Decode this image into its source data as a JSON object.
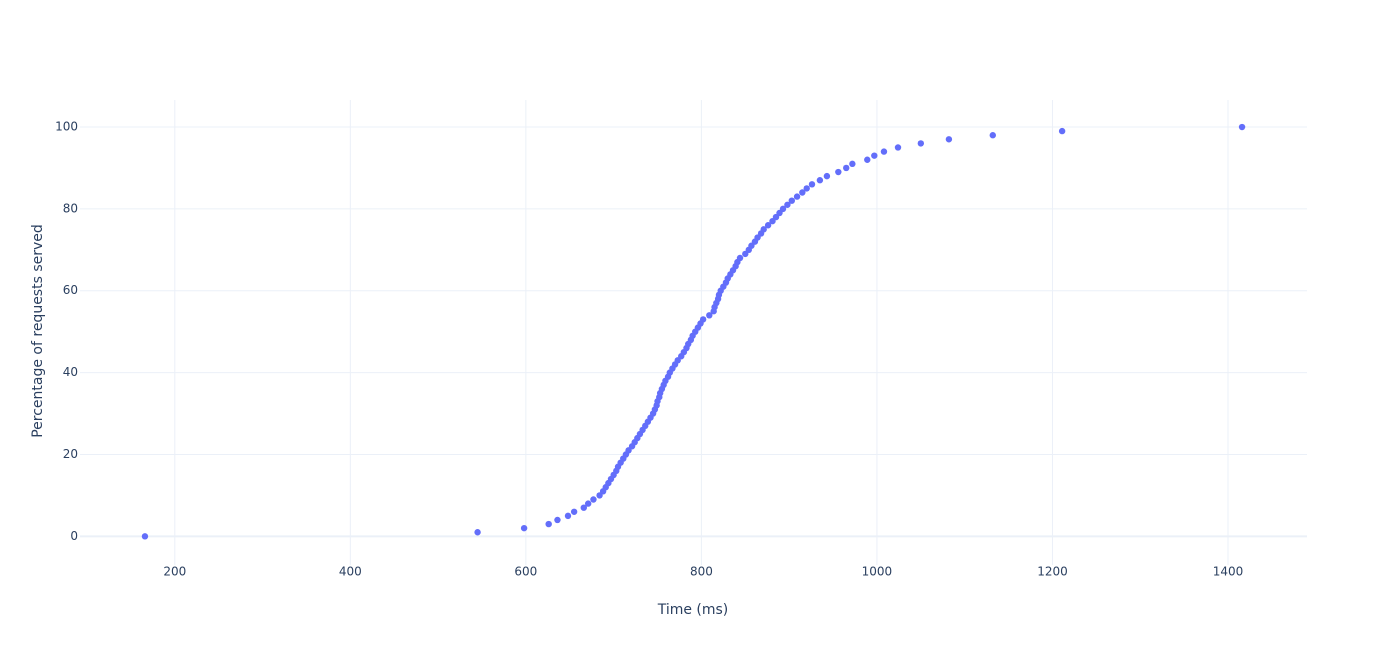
{
  "chart_data": {
    "type": "scatter",
    "x_label": "Time (ms)",
    "y_label": "Percentage of requests served",
    "x": [
      166,
      545,
      598,
      626,
      636,
      648,
      655,
      666,
      671,
      677,
      684,
      688,
      691,
      694,
      697,
      700,
      703,
      705,
      708,
      711,
      714,
      717,
      721,
      724,
      727,
      730,
      733,
      736,
      739,
      742,
      745,
      747,
      749,
      750,
      752,
      753,
      755,
      757,
      759,
      762,
      764,
      767,
      770,
      773,
      777,
      780,
      783,
      785,
      788,
      790,
      793,
      796,
      799,
      802,
      809,
      814,
      815,
      817,
      819,
      820,
      822,
      825,
      828,
      830,
      833,
      836,
      839,
      841,
      844,
      850,
      854,
      857,
      861,
      864,
      868,
      871,
      876,
      881,
      885,
      889,
      893,
      898,
      903,
      909,
      915,
      920,
      926,
      935,
      943,
      956,
      965,
      972,
      989,
      997,
      1008,
      1024,
      1050,
      1082,
      1132,
      1211,
      1416
    ],
    "values": [
      0,
      1,
      2,
      3,
      4,
      5,
      6,
      7,
      8,
      9,
      10,
      11,
      12,
      13,
      14,
      15,
      16,
      17,
      18,
      19,
      20,
      21,
      22,
      23,
      24,
      25,
      26,
      27,
      28,
      29,
      30,
      31,
      32,
      33,
      34,
      35,
      36,
      37,
      38,
      39,
      40,
      41,
      42,
      43,
      44,
      45,
      46,
      47,
      48,
      49,
      50,
      51,
      52,
      53,
      54,
      55,
      56,
      57,
      58,
      59,
      60,
      61,
      62,
      63,
      64,
      65,
      66,
      67,
      68,
      69,
      70,
      71,
      72,
      73,
      74,
      75,
      76,
      77,
      78,
      79,
      80,
      81,
      82,
      83,
      84,
      85,
      86,
      87,
      88,
      89,
      90,
      91,
      92,
      93,
      94,
      95,
      96,
      97,
      98,
      99,
      100
    ],
    "color": "#636efa",
    "xlim": [
      92,
      1490
    ],
    "ylim": [
      -7,
      106.6
    ],
    "xticks": [
      200,
      400,
      600,
      800,
      1000,
      1200,
      1400
    ],
    "yticks": [
      0,
      20,
      40,
      60,
      80,
      100
    ],
    "grid": true
  }
}
